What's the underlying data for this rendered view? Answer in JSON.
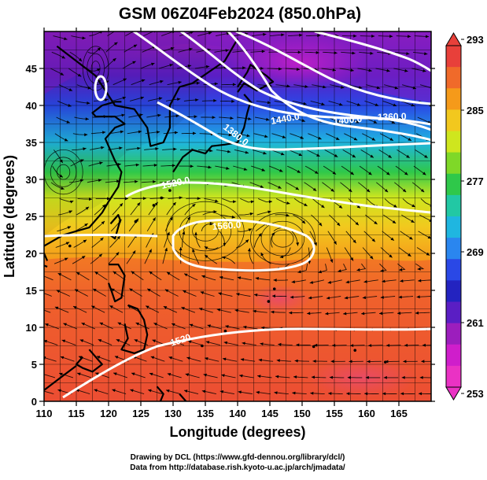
{
  "figure": {
    "title": "GSM 06Z04Feb2024 (850.0hPa)",
    "xlabel": "Longitude (degrees)",
    "ylabel": "Latitude  (degrees)",
    "credit_line1": "Drawing by DCL (https://www.gfd-dennou.org/library/dcl/)",
    "credit_line2": "Data from http://database.rish.kyoto-u.ac.jp/arch/jmadata/"
  },
  "colorbar": {
    "ticks": [
      "293",
      "285",
      "277",
      "269",
      "261",
      "253"
    ],
    "colors_top_to_bottom": [
      "#e8403a",
      "#f06a2a",
      "#f59a1a",
      "#f2c81e",
      "#cfe61e",
      "#7fd828",
      "#2fc84a",
      "#22c8a4",
      "#1fb6e0",
      "#2a86ef",
      "#2a48e6",
      "#2323c0",
      "#5a1ec4",
      "#9c1ebd",
      "#cf1ecb",
      "#ea32c4"
    ]
  },
  "map": {
    "x_ticks": [
      "110",
      "115",
      "120",
      "125",
      "130",
      "135",
      "140",
      "145",
      "150",
      "155",
      "160",
      "165"
    ],
    "y_ticks": [
      "45",
      "40",
      "35",
      "30",
      "25",
      "20",
      "15",
      "10",
      "5",
      "0"
    ],
    "contour_labels": [
      "1440.0",
      "1400.0",
      "1360.0",
      "1380.0",
      "1520.0",
      "1560.0",
      "1520"
    ],
    "colors": {
      "land": "#000000",
      "contour": "#ffffff",
      "grid": "#000000"
    }
  }
}
